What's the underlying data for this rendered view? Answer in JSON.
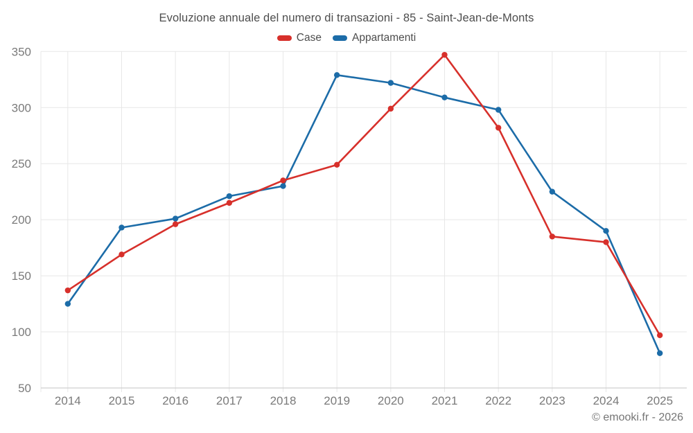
{
  "chart_data": {
    "type": "line",
    "title": "Evoluzione annuale del numero di transazioni - 85 - Saint-Jean-de-Monts",
    "categories": [
      "2014",
      "2015",
      "2016",
      "2017",
      "2018",
      "2019",
      "2020",
      "2021",
      "2022",
      "2023",
      "2024",
      "2025"
    ],
    "series": [
      {
        "name": "Case",
        "color": "#d7302b",
        "values": [
          137,
          169,
          196,
          215,
          235,
          249,
          299,
          347,
          282,
          185,
          180,
          97
        ]
      },
      {
        "name": "Appartamenti",
        "color": "#1c6ca8",
        "values": [
          125,
          193,
          201,
          221,
          230,
          329,
          322,
          309,
          298,
          225,
          190,
          81
        ]
      }
    ],
    "xlabel": "",
    "ylabel": "",
    "ylim": [
      50,
      350
    ],
    "yticks": [
      50,
      100,
      150,
      200,
      250,
      300,
      350
    ],
    "grid": true,
    "legend_position": "top"
  },
  "footer": {
    "copyright": "© emooki.fr - 2026"
  },
  "colors": {
    "grid": "#e7e7e7",
    "axis_line": "#cfcfcf",
    "tick_label": "#7a7a7a",
    "title_text": "#4d4d4d"
  }
}
